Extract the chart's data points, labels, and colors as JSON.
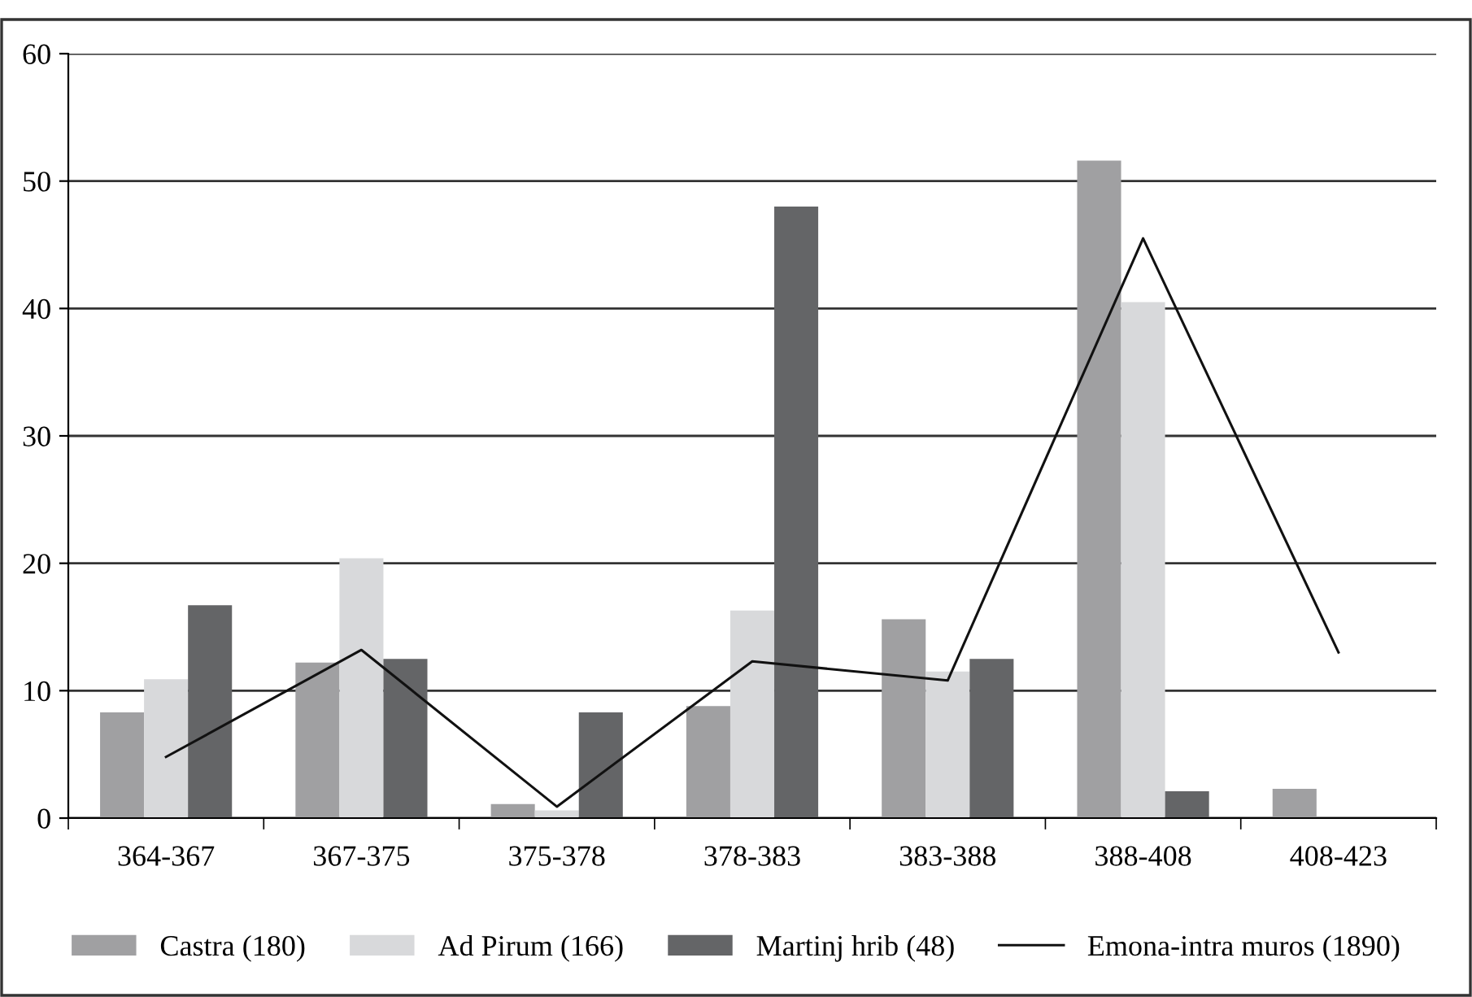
{
  "chart_data": {
    "type": "bar",
    "categories": [
      "364-367",
      "367-375",
      "375-378",
      "378-383",
      "383-388",
      "388-408",
      "408-423"
    ],
    "series": [
      {
        "name": "Castra (180)",
        "color": "#a0a0a2",
        "values": [
          8.3,
          12.2,
          1.1,
          8.8,
          15.6,
          51.6,
          2.3
        ]
      },
      {
        "name": "Ad Pirum (166)",
        "color": "#d8d9db",
        "values": [
          10.9,
          20.4,
          0.6,
          16.3,
          11.5,
          40.5,
          0
        ]
      },
      {
        "name": "Martinj hrib (48)",
        "color": "#646567",
        "values": [
          16.7,
          12.5,
          8.3,
          48.0,
          12.5,
          2.1,
          0
        ]
      },
      {
        "name": "Emona-intra muros (1890)",
        "color": "#111111",
        "type": "line",
        "values": [
          4.8,
          13.2,
          0.9,
          12.3,
          10.8,
          45.5,
          13.0
        ]
      }
    ],
    "ylim": [
      0,
      60
    ],
    "yticks": [
      0,
      10,
      20,
      30,
      40,
      50,
      60
    ],
    "grid": "y",
    "legend": "bottom"
  }
}
